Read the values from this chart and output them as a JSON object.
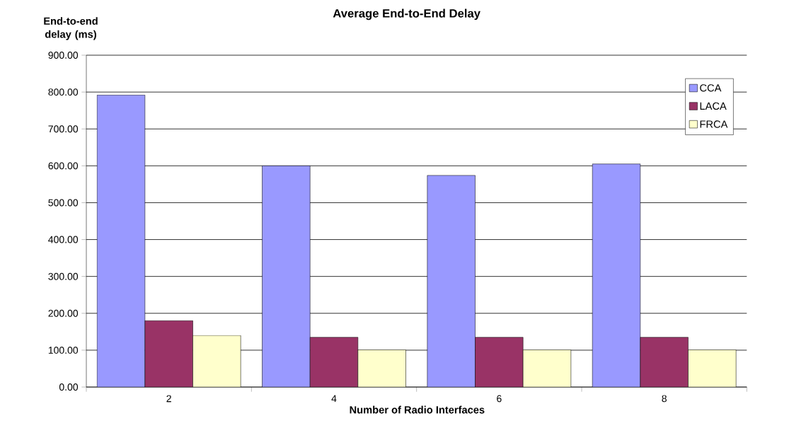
{
  "chart_data": {
    "type": "bar",
    "title": "Average End-to-End Delay",
    "xlabel": "Number of Radio Interfaces",
    "ylabel": "End-to-end delay (ms)",
    "categories": [
      "2",
      "4",
      "6",
      "8"
    ],
    "series": [
      {
        "name": "CCA",
        "color": "#9999ff",
        "values": [
          792,
          600,
          574,
          605
        ]
      },
      {
        "name": "LACA",
        "color": "#993366",
        "values": [
          180,
          135,
          135,
          135
        ]
      },
      {
        "name": "FRCA",
        "color": "#ffffcc",
        "values": [
          140,
          101,
          101,
          101
        ]
      }
    ],
    "ylim": [
      0,
      900
    ],
    "yticks": [
      {
        "value": 0,
        "label": "0.00"
      },
      {
        "value": 100,
        "label": "100.00"
      },
      {
        "value": 200,
        "label": "200.00"
      },
      {
        "value": 300,
        "label": "300.00"
      },
      {
        "value": 400,
        "label": "400.00"
      },
      {
        "value": 500,
        "label": "500.00"
      },
      {
        "value": 600,
        "label": "600.00"
      },
      {
        "value": 700,
        "label": "700.00"
      },
      {
        "value": 800,
        "label": "800.00"
      },
      {
        "value": 900,
        "label": "900.00"
      }
    ],
    "grid": "y",
    "legend": "top right"
  }
}
